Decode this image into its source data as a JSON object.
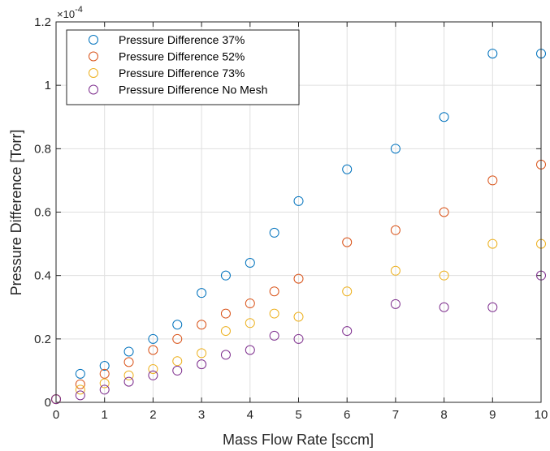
{
  "chart_data": {
    "type": "scatter",
    "xlabel": "Mass Flow Rate [sccm]",
    "ylabel": "Pressure Difference [Torr]",
    "y_exponent_label": "×10",
    "y_exponent_power": "-4",
    "xlim": [
      0,
      10
    ],
    "ylim": [
      0,
      1.2
    ],
    "x_ticks": [
      0,
      1,
      2,
      3,
      4,
      5,
      6,
      7,
      8,
      9,
      10
    ],
    "x_tick_labels": [
      "0",
      "1",
      "2",
      "3",
      "4",
      "5",
      "6",
      "7",
      "8",
      "9",
      "10"
    ],
    "y_ticks": [
      0,
      0.2,
      0.4,
      0.6,
      0.8,
      1.0,
      1.2
    ],
    "y_tick_labels": [
      "0",
      "0.2",
      "0.4",
      "0.6",
      "0.8",
      "1",
      "1.2"
    ],
    "grid": true,
    "legend_position": "top-left",
    "x": [
      0,
      0.5,
      1,
      1.5,
      2,
      2.5,
      3,
      3.5,
      4,
      4.5,
      5,
      6,
      7,
      8,
      9,
      10
    ],
    "series": [
      {
        "name": "Pressure Difference 37%",
        "color": "#0072BD",
        "values": [
          0.01,
          0.09,
          0.115,
          0.16,
          0.2,
          0.245,
          0.345,
          0.4,
          0.44,
          0.535,
          0.635,
          0.735,
          0.8,
          0.9,
          1.1,
          1.1
        ]
      },
      {
        "name": "Pressure Difference 52%",
        "color": "#D95319",
        "values": [
          0.01,
          0.057,
          0.09,
          0.127,
          0.165,
          0.2,
          0.245,
          0.28,
          0.312,
          0.35,
          0.39,
          0.505,
          0.543,
          0.6,
          0.7,
          0.75
        ]
      },
      {
        "name": "Pressure Difference 73%",
        "color": "#EDB120",
        "values": [
          0.01,
          0.04,
          0.06,
          0.085,
          0.105,
          0.13,
          0.155,
          0.225,
          0.25,
          0.28,
          0.27,
          0.35,
          0.415,
          0.4,
          0.5,
          0.5
        ]
      },
      {
        "name": "Pressure Difference No Mesh",
        "color": "#7E2F8E",
        "values": [
          0.01,
          0.022,
          0.04,
          0.065,
          0.085,
          0.1,
          0.12,
          0.15,
          0.165,
          0.21,
          0.2,
          0.225,
          0.31,
          0.3,
          0.3,
          0.4
        ]
      }
    ]
  }
}
